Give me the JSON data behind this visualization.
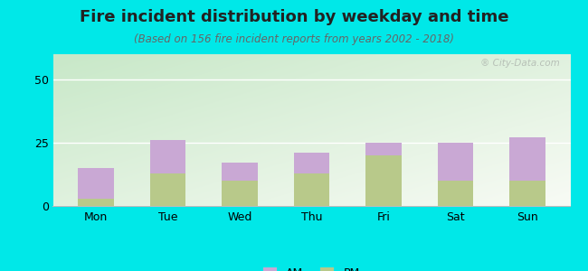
{
  "title": "Fire incident distribution by weekday and time",
  "subtitle": "(Based on 156 fire incident reports from years 2002 - 2018)",
  "categories": [
    "Mon",
    "Tue",
    "Wed",
    "Thu",
    "Fri",
    "Sat",
    "Sun"
  ],
  "am_values": [
    12,
    13,
    7,
    8,
    5,
    15,
    17
  ],
  "pm_values": [
    3,
    13,
    10,
    13,
    20,
    10,
    10
  ],
  "am_color": "#c9a8d4",
  "pm_color": "#b8c98a",
  "background_outer": "#00e8e8",
  "background_chart_topleft": "#c8e8c8",
  "background_chart_bottomright": "#f8fbf5",
  "ylim": [
    0,
    60
  ],
  "yticks": [
    0,
    25,
    50
  ],
  "bar_width": 0.5,
  "title_fontsize": 13,
  "subtitle_fontsize": 8.5,
  "tick_fontsize": 9,
  "legend_fontsize": 9,
  "watermark_text": "® City-Data.com"
}
